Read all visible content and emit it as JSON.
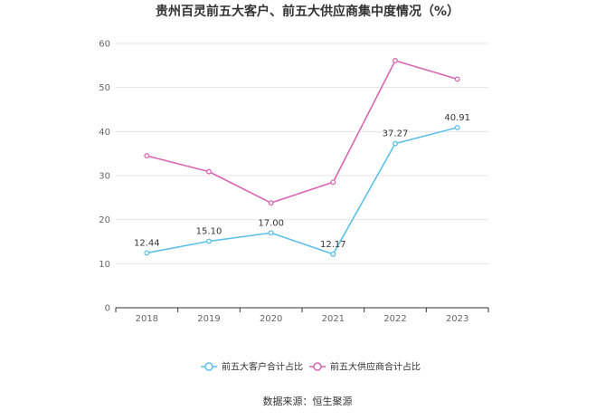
{
  "chart_data": {
    "type": "line",
    "title": "贵州百灵前五大客户、前五大供应商集中度情况（%）",
    "categories": [
      "2018",
      "2019",
      "2020",
      "2021",
      "2022",
      "2023"
    ],
    "ylim": [
      0,
      60
    ],
    "yticks": [
      0,
      10,
      20,
      30,
      40,
      50,
      60
    ],
    "grid": true,
    "legend_position": "bottom",
    "series": [
      {
        "name": "前五大客户合计占比",
        "values": [
          12.44,
          15.1,
          17.0,
          12.17,
          37.27,
          40.91
        ],
        "labels": [
          "12.44",
          "15.10",
          "17.00",
          "12.17",
          "37.27",
          "40.91"
        ],
        "color": "#5bc0eb"
      },
      {
        "name": "前五大供应商合计占比",
        "values": [
          34.5,
          30.9,
          23.8,
          28.5,
          56.1,
          51.9
        ],
        "color": "#d966b2"
      }
    ],
    "source": "数据来源：恒生聚源"
  }
}
